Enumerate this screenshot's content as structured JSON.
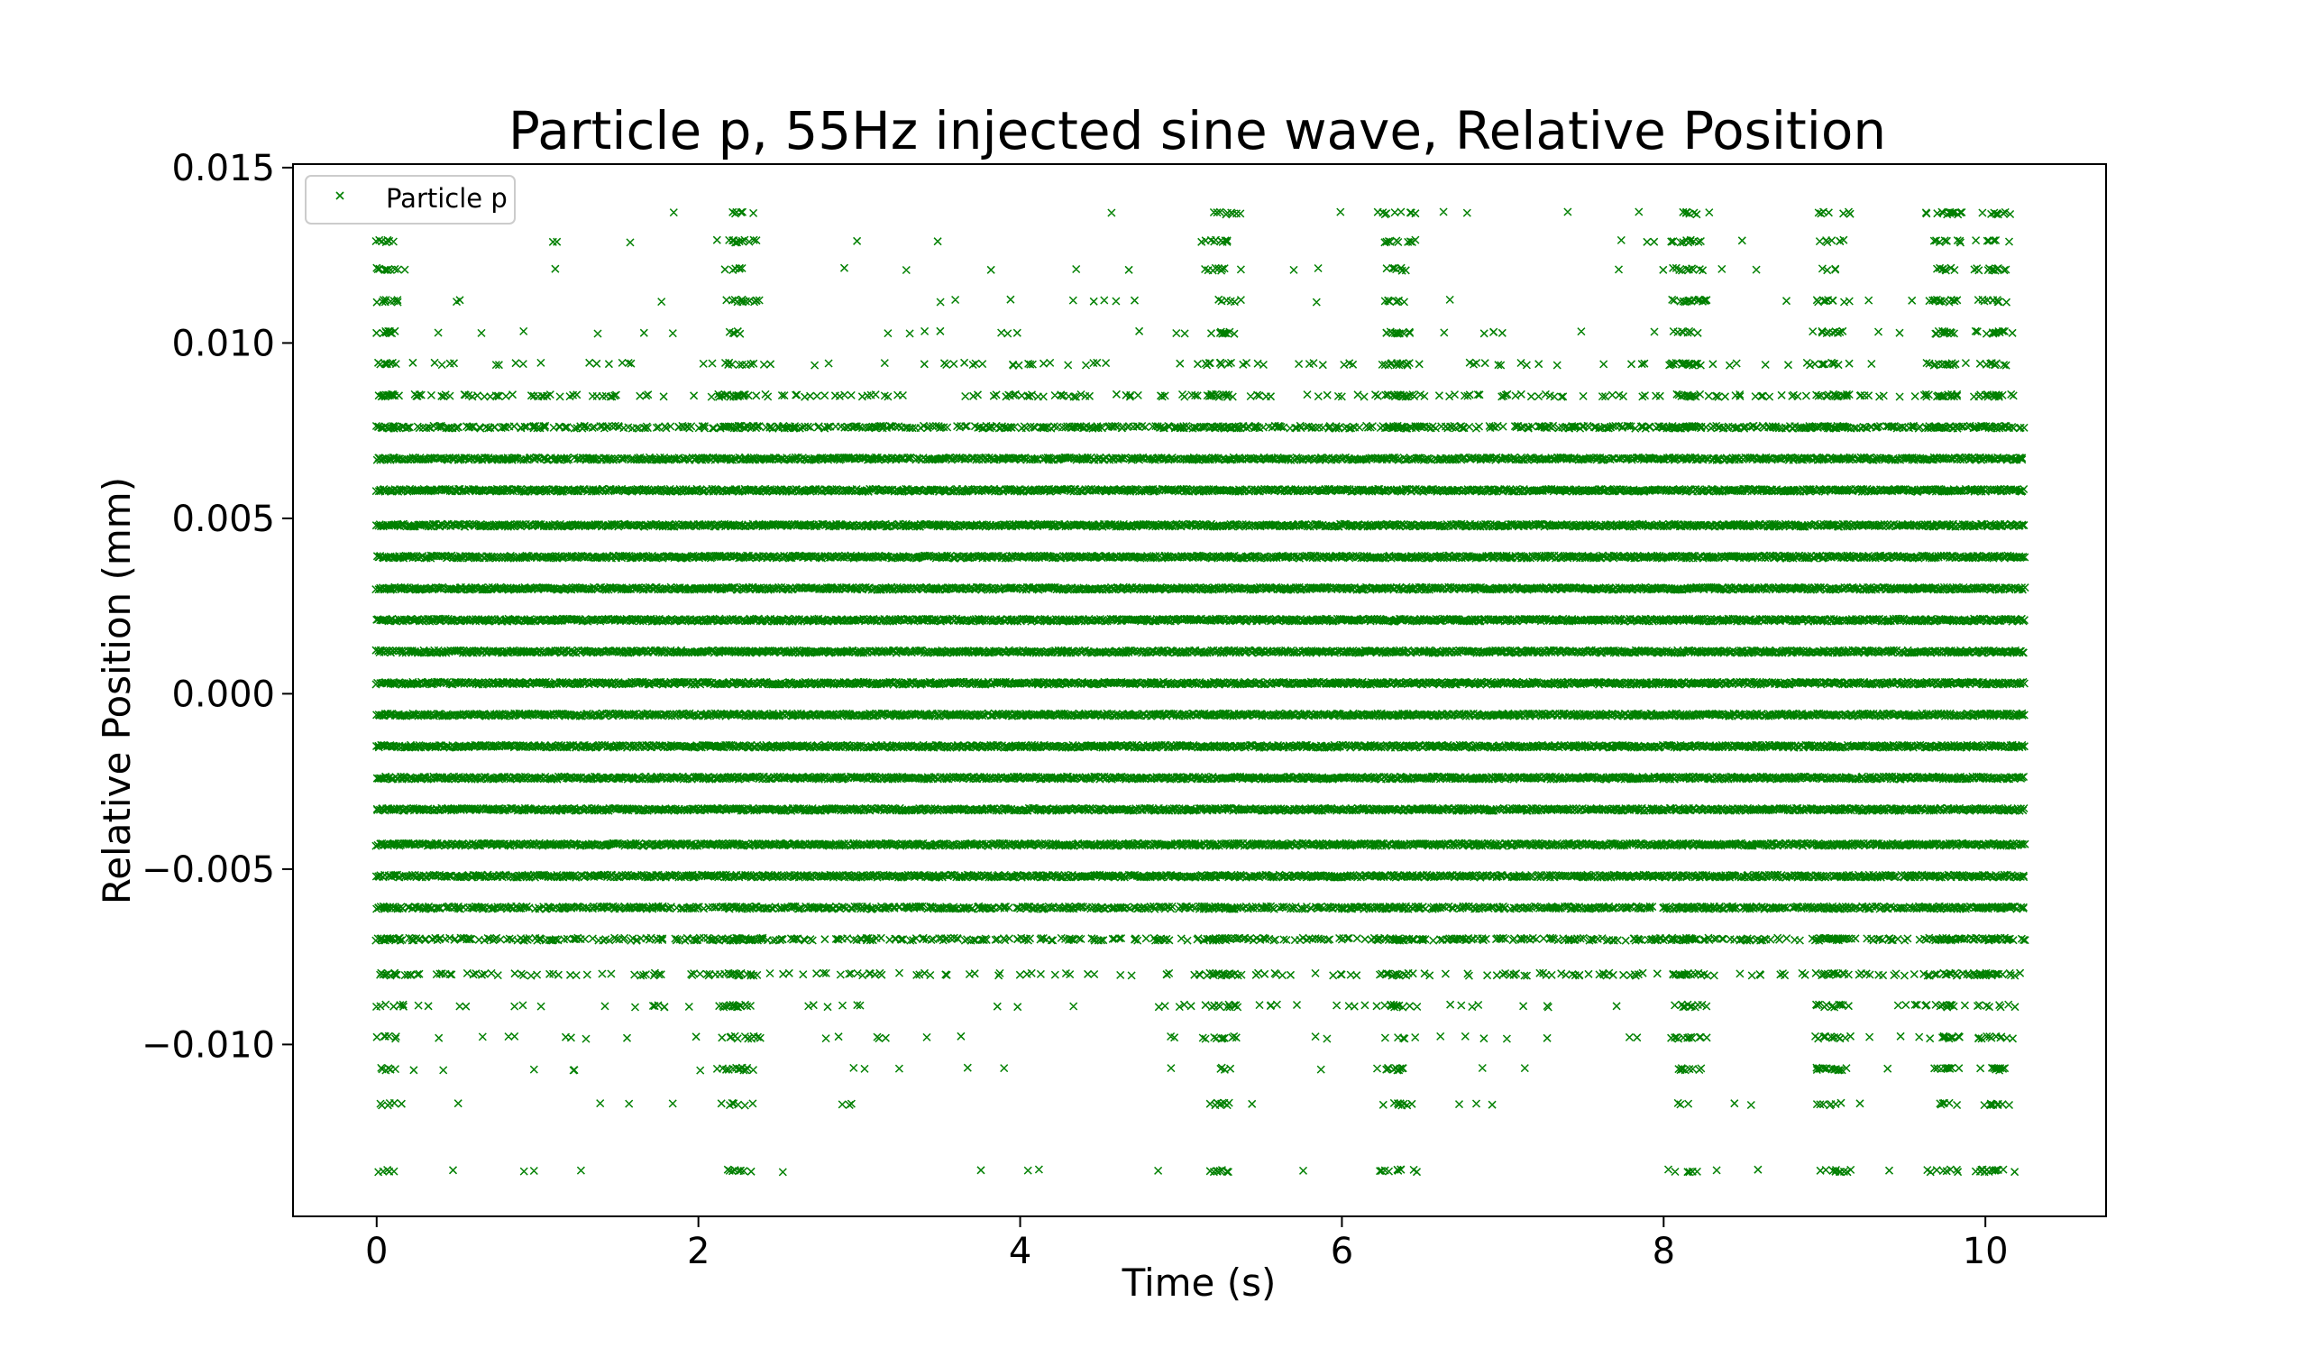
{
  "chart_data": {
    "type": "scatter",
    "title": "Particle p, 55Hz injected sine wave, Relative Position",
    "xlabel": "Time (s)",
    "ylabel": "Relative Position (mm)",
    "xlim": [
      -0.52,
      10.75
    ],
    "ylim": [
      -0.0149,
      0.0151
    ],
    "xticks": [
      0,
      2,
      4,
      6,
      8,
      10
    ],
    "xtick_labels": [
      "0",
      "2",
      "4",
      "6",
      "8",
      "10"
    ],
    "yticks": [
      -0.01,
      -0.005,
      0.0,
      0.005,
      0.01,
      0.015
    ],
    "ytick_labels": [
      "−0.010",
      "−0.005",
      "0.000",
      "0.005",
      "0.010",
      "0.015"
    ],
    "grid": false,
    "legend": {
      "position": "upper-left",
      "entries": [
        "Particle p"
      ]
    },
    "series": [
      {
        "name": "Particle p",
        "marker": "x",
        "color": "#008000",
        "x_range": [
          0.0,
          10.25
        ],
        "levels": [
          -0.0136,
          -0.0117,
          -0.0107,
          -0.0098,
          -0.0089,
          -0.008,
          -0.007,
          -0.0061,
          -0.0052,
          -0.0043,
          -0.0033,
          -0.0024,
          -0.0015,
          -0.0006,
          0.0003,
          0.0012,
          0.0021,
          0.003,
          0.0039,
          0.0048,
          0.0058,
          0.0067,
          0.0076,
          0.0085,
          0.0094,
          0.0103,
          0.0112,
          0.0121,
          0.0129,
          0.0137
        ],
        "level_density": [
          0.01,
          0.01,
          0.02,
          0.03,
          0.06,
          0.2,
          0.45,
          0.75,
          0.95,
          1.0,
          1.0,
          1.0,
          1.0,
          1.0,
          1.0,
          1.0,
          1.0,
          1.0,
          1.0,
          1.0,
          1.0,
          0.92,
          0.55,
          0.18,
          0.08,
          0.03,
          0.02,
          0.02,
          0.01,
          0.005
        ],
        "bursts_s": [
          0.05,
          2.25,
          5.25,
          6.35,
          8.15,
          9.05,
          9.75,
          10.05
        ]
      }
    ]
  }
}
